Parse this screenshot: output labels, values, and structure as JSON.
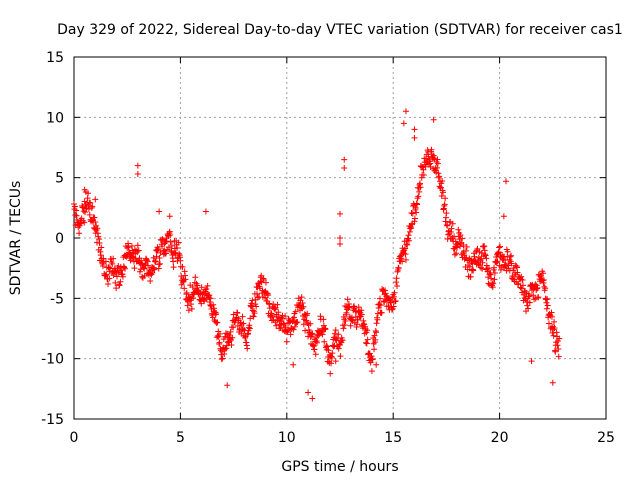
{
  "chart_data": {
    "type": "scatter",
    "title": "Day 329 of 2022, Sidereal Day-to-day VTEC variation (SDTVAR) for receiver cas1",
    "xlabel": "GPS time / hours",
    "ylabel": "SDTVAR / TECUs",
    "xlim": [
      0,
      25
    ],
    "ylim": [
      -15,
      15
    ],
    "xticks": [
      "0",
      "5",
      "10",
      "15",
      "20",
      "25"
    ],
    "yticks": [
      "15",
      "10",
      "5",
      "0",
      "-5",
      "-10",
      "-15"
    ],
    "grid": true,
    "marker": "+",
    "colors": {
      "series": "#ff0000",
      "grid": "#a0a0a0",
      "axis": "#000000"
    },
    "series": [
      {
        "name": "SDTVAR",
        "keypoints": [
          [
            0.0,
            2.5
          ],
          [
            0.3,
            1.0
          ],
          [
            0.6,
            2.5
          ],
          [
            0.9,
            1.5
          ],
          [
            1.1,
            -1.0
          ],
          [
            1.4,
            -2.5
          ],
          [
            1.8,
            -2.0
          ],
          [
            2.2,
            -4.0
          ],
          [
            2.6,
            -1.5
          ],
          [
            3.0,
            -2.5
          ],
          [
            3.5,
            -2.8
          ],
          [
            4.0,
            -1.5
          ],
          [
            4.5,
            -0.5
          ],
          [
            5.0,
            -2.0
          ],
          [
            5.5,
            -4.5
          ],
          [
            6.0,
            -3.5
          ],
          [
            6.5,
            -5.5
          ],
          [
            7.0,
            -9.0
          ],
          [
            7.5,
            -7.0
          ],
          [
            8.0,
            -8.0
          ],
          [
            8.5,
            -5.5
          ],
          [
            9.0,
            -3.5
          ],
          [
            9.5,
            -6.5
          ],
          [
            10.0,
            -8.0
          ],
          [
            10.5,
            -6.0
          ],
          [
            11.0,
            -7.0
          ],
          [
            11.3,
            -9.0
          ],
          [
            11.6,
            -7.0
          ],
          [
            12.0,
            -9.0
          ],
          [
            12.5,
            -9.0
          ],
          [
            13.0,
            -6.0
          ],
          [
            13.5,
            -6.5
          ],
          [
            14.0,
            -10.0
          ],
          [
            14.5,
            -5.0
          ],
          [
            15.0,
            -6.0
          ],
          [
            15.3,
            -3.0
          ],
          [
            15.6,
            -0.5
          ],
          [
            15.8,
            2.0
          ],
          [
            16.2,
            4.0
          ],
          [
            16.5,
            6.0
          ],
          [
            16.8,
            7.0
          ],
          [
            17.2,
            4.0
          ],
          [
            17.6,
            1.0
          ],
          [
            18.0,
            0.0
          ],
          [
            18.5,
            -1.5
          ],
          [
            19.0,
            -1.0
          ],
          [
            19.5,
            -2.5
          ],
          [
            20.0,
            -1.5
          ],
          [
            20.5,
            -1.0
          ],
          [
            21.0,
            -3.5
          ],
          [
            21.3,
            -5.5
          ],
          [
            21.7,
            -5.0
          ],
          [
            22.0,
            -4.5
          ],
          [
            22.3,
            -6.0
          ],
          [
            22.6,
            -8.0
          ],
          [
            22.8,
            -9.0
          ]
        ],
        "outliers": [
          [
            0.5,
            4.0
          ],
          [
            1.0,
            3.2
          ],
          [
            3.0,
            6.0
          ],
          [
            3.0,
            5.3
          ],
          [
            4.0,
            2.2
          ],
          [
            4.5,
            1.8
          ],
          [
            6.2,
            2.2
          ],
          [
            7.2,
            -12.2
          ],
          [
            10.3,
            -10.5
          ],
          [
            11.2,
            -13.3
          ],
          [
            11.0,
            -12.8
          ],
          [
            12.3,
            -10.2
          ],
          [
            12.5,
            2.0
          ],
          [
            12.5,
            0.0
          ],
          [
            12.5,
            -0.5
          ],
          [
            12.7,
            6.5
          ],
          [
            12.7,
            5.8
          ],
          [
            14.2,
            -10.5
          ],
          [
            15.5,
            9.5
          ],
          [
            15.6,
            10.5
          ],
          [
            16.0,
            9.0
          ],
          [
            16.0,
            8.3
          ],
          [
            16.9,
            9.8
          ],
          [
            20.3,
            4.7
          ],
          [
            20.2,
            1.8
          ],
          [
            21.5,
            -10.2
          ],
          [
            22.5,
            -12.0
          ]
        ]
      }
    ]
  }
}
